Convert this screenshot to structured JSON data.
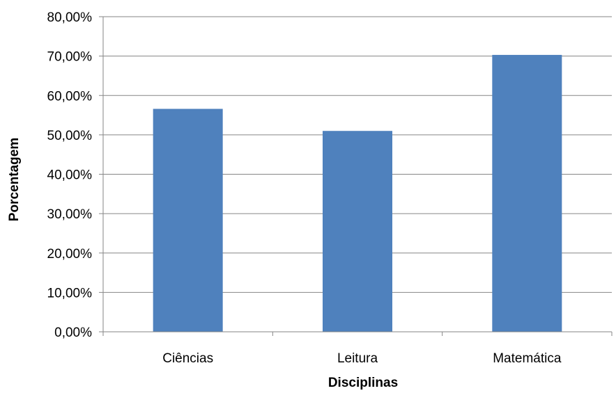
{
  "chart_data": {
    "type": "bar",
    "title": "",
    "xlabel": "Disciplinas",
    "ylabel": "Porcentagem",
    "categories": [
      "Ciências",
      "Leitura",
      "Matemática"
    ],
    "values": [
      56.6,
      51.0,
      70.3
    ],
    "ylim": [
      0,
      80
    ],
    "yticks": [
      0,
      10,
      20,
      30,
      40,
      50,
      60,
      70,
      80
    ],
    "ytick_labels": [
      "0,00%",
      "10,00%",
      "20,00%",
      "30,00%",
      "40,00%",
      "50,00%",
      "60,00%",
      "70,00%",
      "80,00%"
    ],
    "grid": true,
    "legend": "none",
    "colors": {
      "bar": "#4f81bd",
      "grid": "#868686",
      "axis": "#868686"
    }
  }
}
